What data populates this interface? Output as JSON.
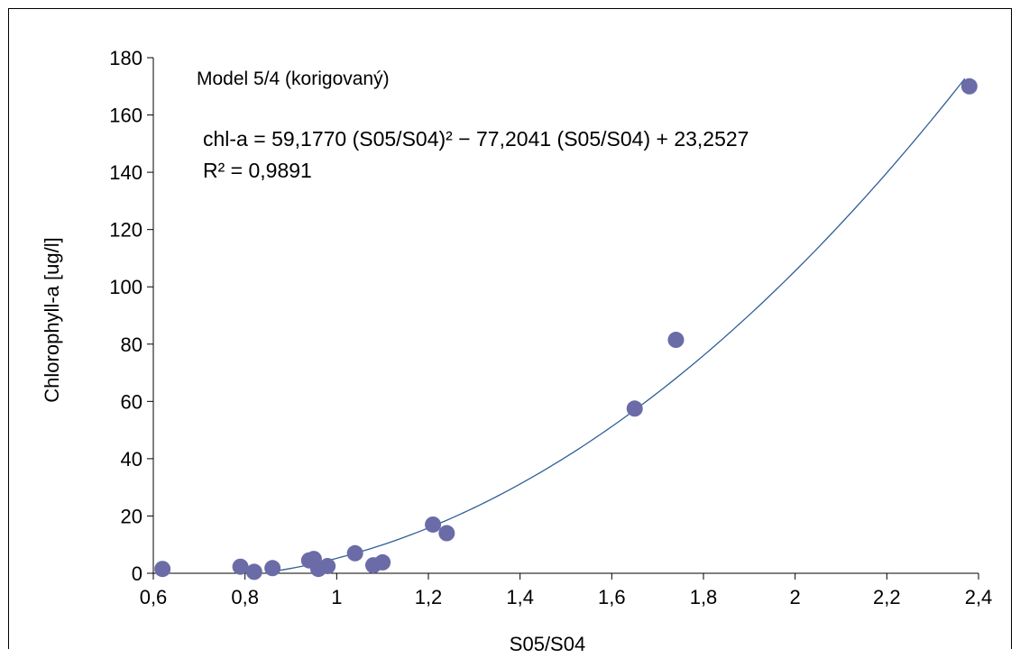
{
  "chart_data": {
    "type": "scatter",
    "title": "",
    "xlabel": "S05/S04",
    "ylabel": "Chlorophyll-a [ug/l]",
    "xlim": [
      0.6,
      2.4
    ],
    "ylim": [
      0,
      180
    ],
    "x_ticks": [
      0.6,
      0.8,
      1.0,
      1.2,
      1.4,
      1.6,
      1.8,
      2.0,
      2.2,
      2.4
    ],
    "x_tick_labels": [
      "0,6",
      "0,8",
      "1",
      "1,2",
      "1,4",
      "1,6",
      "1,8",
      "2",
      "2,2",
      "2,4"
    ],
    "y_ticks": [
      0,
      20,
      40,
      60,
      80,
      100,
      120,
      140,
      160,
      180
    ],
    "y_tick_labels": [
      "0",
      "20",
      "40",
      "60",
      "80",
      "100",
      "120",
      "140",
      "160",
      "180"
    ],
    "grid": false,
    "marker_color": "#6b6ba8",
    "line_color": "#2f5f97",
    "points": [
      {
        "x": 0.62,
        "y": 1.5
      },
      {
        "x": 0.79,
        "y": 2.3
      },
      {
        "x": 0.82,
        "y": 0.5
      },
      {
        "x": 0.86,
        "y": 1.8
      },
      {
        "x": 0.94,
        "y": 4.5
      },
      {
        "x": 0.95,
        "y": 5.0
      },
      {
        "x": 0.96,
        "y": 1.5
      },
      {
        "x": 0.98,
        "y": 2.5
      },
      {
        "x": 1.04,
        "y": 7.0
      },
      {
        "x": 1.08,
        "y": 2.8
      },
      {
        "x": 1.1,
        "y": 3.8
      },
      {
        "x": 1.21,
        "y": 17.0
      },
      {
        "x": 1.24,
        "y": 14.0
      },
      {
        "x": 1.65,
        "y": 57.5
      },
      {
        "x": 1.74,
        "y": 81.5
      },
      {
        "x": 2.38,
        "y": 170.0
      }
    ],
    "trendline": {
      "type": "polynomial",
      "coefficients": [
        59.177,
        -77.2041,
        23.2527
      ],
      "x_range": [
        0.86,
        2.37
      ]
    },
    "annotations": {
      "model_label": "Model 5/4 (korigovaný)",
      "equation": "chl-a = 59,1770 (S05/S04)² − 77,2041 (S05/S04) + 23,2527",
      "r_squared": "R² = 0,9891"
    }
  }
}
